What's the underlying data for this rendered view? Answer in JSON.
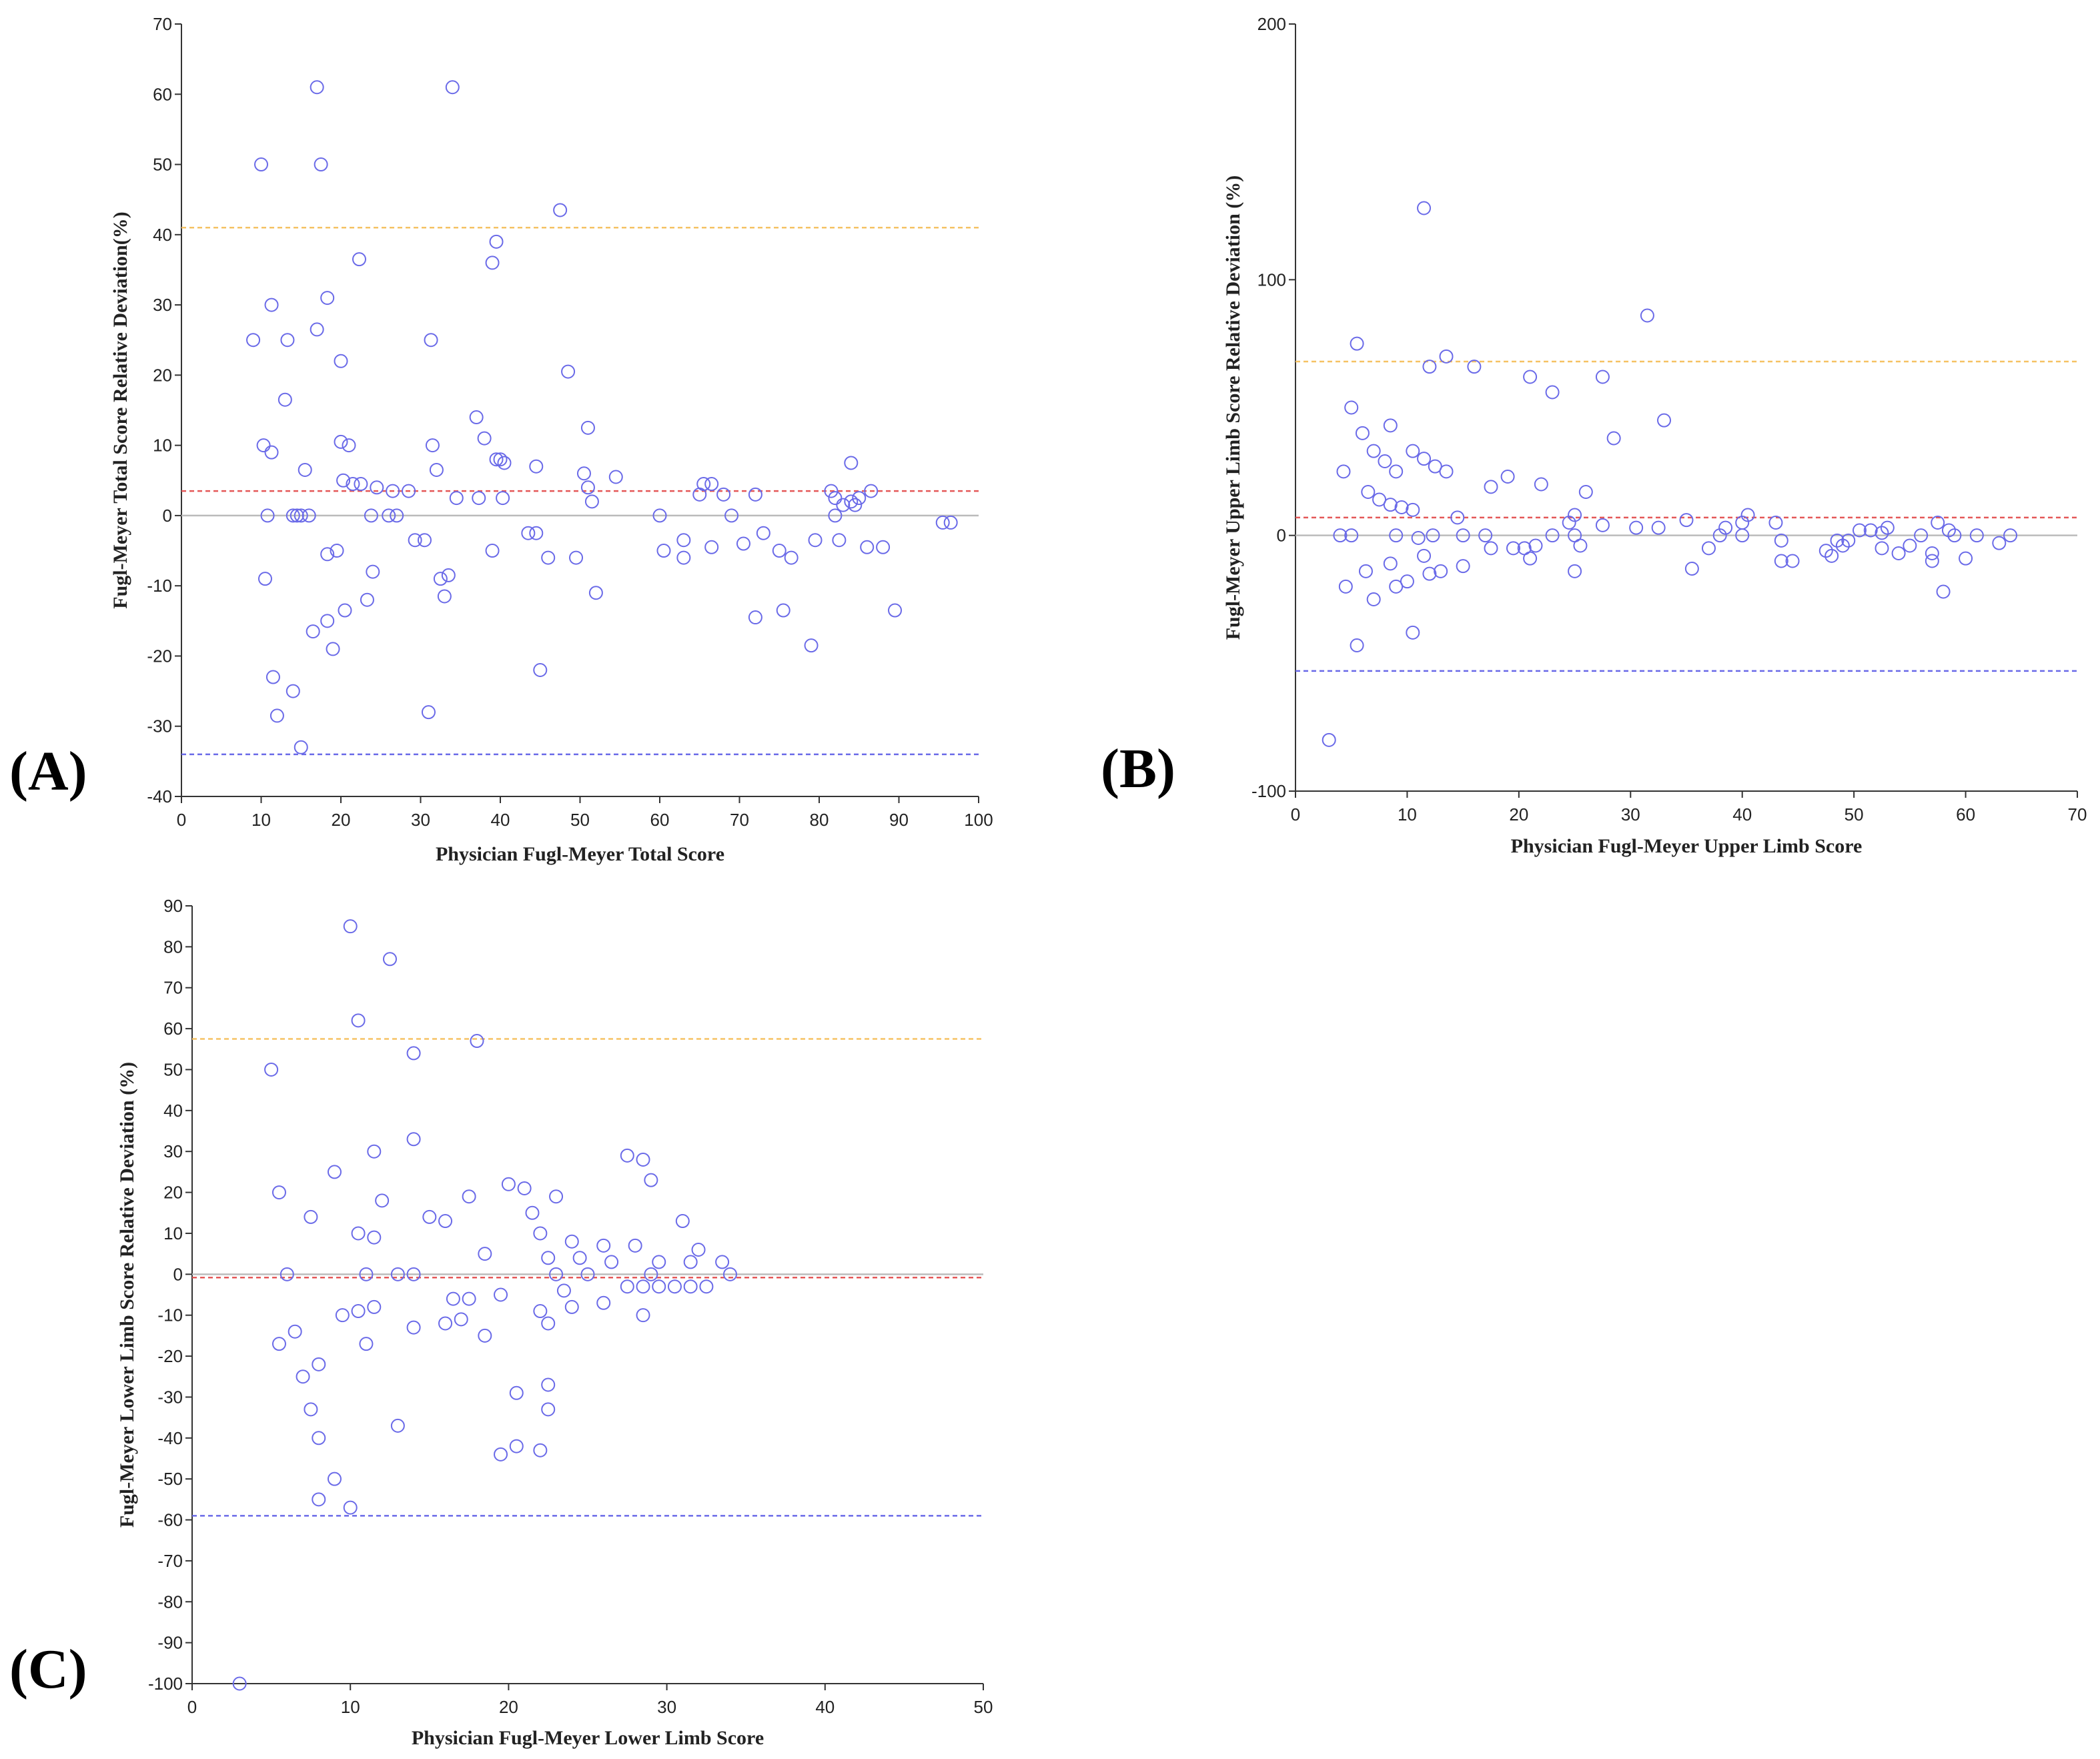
{
  "chart_data": [
    {
      "type": "scatter",
      "panel_label": "(A)",
      "xlabel": "Physician Fugl-Meyer Total Score",
      "ylabel": "Fugl-Meyer Total Score Relative Deviation(%)",
      "xlim": [
        0,
        100
      ],
      "ylim": [
        -40,
        70
      ],
      "xticks": [
        0,
        10,
        20,
        30,
        40,
        50,
        60,
        70,
        80,
        90,
        100
      ],
      "yticks": [
        -40,
        -30,
        -20,
        -10,
        0,
        10,
        20,
        30,
        40,
        50,
        60,
        70
      ],
      "reference_lines": [
        {
          "y": 0,
          "color": "#bbbbbb",
          "style": "solid"
        },
        {
          "y": 41,
          "color": "#f5c264",
          "style": "dashed"
        },
        {
          "y": 3.5,
          "color": "#e45858",
          "style": "dashed"
        },
        {
          "y": -34,
          "color": "#6a6ae8",
          "style": "dashed"
        }
      ],
      "marker_color": "#6a6ae8",
      "points": [
        [
          9,
          25
        ],
        [
          10,
          50
        ],
        [
          10.3,
          10
        ],
        [
          10.5,
          -9
        ],
        [
          10.8,
          0
        ],
        [
          11.3,
          30
        ],
        [
          11.3,
          9
        ],
        [
          11.5,
          -23
        ],
        [
          12,
          -28.5
        ],
        [
          13,
          16.5
        ],
        [
          13.3,
          25
        ],
        [
          14,
          0
        ],
        [
          14,
          -25
        ],
        [
          14.5,
          0
        ],
        [
          15,
          0
        ],
        [
          15,
          -33
        ],
        [
          15.5,
          6.5
        ],
        [
          16,
          0
        ],
        [
          16.5,
          -16.5
        ],
        [
          17,
          61
        ],
        [
          17,
          26.5
        ],
        [
          17.5,
          50
        ],
        [
          18.3,
          31
        ],
        [
          18.3,
          -15
        ],
        [
          18.3,
          -5.5
        ],
        [
          19,
          -19
        ],
        [
          19.5,
          -5
        ],
        [
          20,
          10.5
        ],
        [
          20,
          22
        ],
        [
          20.3,
          5
        ],
        [
          20.5,
          -13.5
        ],
        [
          21,
          10
        ],
        [
          21.5,
          4.5
        ],
        [
          22.3,
          36.5
        ],
        [
          22.5,
          4.5
        ],
        [
          23.3,
          -12
        ],
        [
          23.8,
          0
        ],
        [
          24,
          -8
        ],
        [
          24.5,
          4
        ],
        [
          26,
          0
        ],
        [
          26.5,
          3.5
        ],
        [
          27,
          0
        ],
        [
          28.5,
          3.5
        ],
        [
          29.3,
          -3.5
        ],
        [
          30.5,
          -3.5
        ],
        [
          31,
          -28
        ],
        [
          31.3,
          25
        ],
        [
          31.5,
          10
        ],
        [
          32,
          6.5
        ],
        [
          32.5,
          -9
        ],
        [
          33,
          -11.5
        ],
        [
          33.5,
          -8.5
        ],
        [
          34,
          61
        ],
        [
          34.5,
          2.5
        ],
        [
          37,
          14
        ],
        [
          37.3,
          2.5
        ],
        [
          38,
          11
        ],
        [
          39,
          36
        ],
        [
          39,
          -5
        ],
        [
          39.5,
          8
        ],
        [
          39.5,
          39
        ],
        [
          40,
          8
        ],
        [
          40.3,
          2.5
        ],
        [
          40.5,
          7.5
        ],
        [
          43.5,
          -2.5
        ],
        [
          44.5,
          7
        ],
        [
          44.5,
          -2.5
        ],
        [
          45,
          -22
        ],
        [
          46,
          -6
        ],
        [
          47.5,
          43.5
        ],
        [
          48.5,
          20.5
        ],
        [
          49.5,
          -6
        ],
        [
          50.5,
          6
        ],
        [
          51,
          12.5
        ],
        [
          51,
          4
        ],
        [
          51.5,
          2
        ],
        [
          52,
          -11
        ],
        [
          54.5,
          5.5
        ],
        [
          60,
          0
        ],
        [
          60.5,
          -5
        ],
        [
          63,
          -6
        ],
        [
          63,
          -3.5
        ],
        [
          65,
          3
        ],
        [
          65.5,
          4.5
        ],
        [
          66.5,
          4.5
        ],
        [
          66.5,
          -4.5
        ],
        [
          68,
          3
        ],
        [
          69,
          0
        ],
        [
          70.5,
          -4
        ],
        [
          72,
          3
        ],
        [
          72,
          -14.5
        ],
        [
          73,
          -2.5
        ],
        [
          75,
          -5
        ],
        [
          75.5,
          -13.5
        ],
        [
          76.5,
          -6
        ],
        [
          79,
          -18.5
        ],
        [
          79.5,
          -3.5
        ],
        [
          81.5,
          3.5
        ],
        [
          82,
          0
        ],
        [
          82,
          2.5
        ],
        [
          82.5,
          -3.5
        ],
        [
          83,
          1.5
        ],
        [
          84,
          7.5
        ],
        [
          84,
          2
        ],
        [
          84.5,
          1.5
        ],
        [
          85,
          2.5
        ],
        [
          86,
          -4.5
        ],
        [
          86.5,
          3.5
        ],
        [
          88,
          -4.5
        ],
        [
          89.5,
          -13.5
        ],
        [
          95.5,
          -1
        ],
        [
          96.5,
          -1
        ]
      ]
    },
    {
      "type": "scatter",
      "panel_label": "(B)",
      "xlabel": "Physician Fugl-Meyer Upper Limb Score",
      "ylabel": "Fugl-Meyer Upper Limb Score Relative Deviation (%)",
      "xlim": [
        0,
        70
      ],
      "ylim": [
        -100,
        200
      ],
      "xticks": [
        0,
        10,
        20,
        30,
        40,
        50,
        60,
        70
      ],
      "yticks": [
        -100,
        0,
        100,
        200
      ],
      "reference_lines": [
        {
          "y": 0,
          "color": "#bbbbbb",
          "style": "solid"
        },
        {
          "y": 68,
          "color": "#f5c264",
          "style": "dashed"
        },
        {
          "y": 7,
          "color": "#e45858",
          "style": "dashed"
        },
        {
          "y": -53,
          "color": "#6a6ae8",
          "style": "dashed"
        }
      ],
      "marker_color": "#6a6ae8",
      "points": [
        [
          3,
          -80
        ],
        [
          4,
          0
        ],
        [
          4.3,
          25
        ],
        [
          4.5,
          -20
        ],
        [
          5,
          0
        ],
        [
          5,
          50
        ],
        [
          5.5,
          75
        ],
        [
          5.5,
          -43
        ],
        [
          6,
          40
        ],
        [
          6.3,
          -14
        ],
        [
          6.5,
          17
        ],
        [
          7,
          33
        ],
        [
          7,
          -25
        ],
        [
          7.5,
          14
        ],
        [
          8,
          29
        ],
        [
          8.5,
          12
        ],
        [
          8.5,
          43
        ],
        [
          8.5,
          -11
        ],
        [
          9,
          25
        ],
        [
          9,
          0
        ],
        [
          9,
          -20
        ],
        [
          9.5,
          11
        ],
        [
          10,
          -18
        ],
        [
          10.5,
          33
        ],
        [
          10.5,
          10
        ],
        [
          10.5,
          -38
        ],
        [
          11,
          -1
        ],
        [
          11.5,
          128
        ],
        [
          11.5,
          30
        ],
        [
          11.5,
          -8
        ],
        [
          12,
          66
        ],
        [
          12,
          -15
        ],
        [
          12.3,
          0
        ],
        [
          12.5,
          27
        ],
        [
          13,
          -14
        ],
        [
          13.5,
          70
        ],
        [
          13.5,
          25
        ],
        [
          14.5,
          7
        ],
        [
          15,
          0
        ],
        [
          15,
          -12
        ],
        [
          16,
          66
        ],
        [
          17,
          0
        ],
        [
          17.5,
          19
        ],
        [
          17.5,
          -5
        ],
        [
          19,
          23
        ],
        [
          19.5,
          -5
        ],
        [
          20.5,
          -5
        ],
        [
          21,
          -9
        ],
        [
          21,
          62
        ],
        [
          21.5,
          -4
        ],
        [
          22,
          20
        ],
        [
          23,
          56
        ],
        [
          23,
          0
        ],
        [
          24.5,
          5
        ],
        [
          25,
          -14
        ],
        [
          25,
          8
        ],
        [
          25,
          0
        ],
        [
          25.5,
          -4
        ],
        [
          26,
          17
        ],
        [
          27.5,
          4
        ],
        [
          27.5,
          62
        ],
        [
          28.5,
          38
        ],
        [
          30.5,
          3
        ],
        [
          31.5,
          86
        ],
        [
          32.5,
          3
        ],
        [
          33,
          45
        ],
        [
          35,
          6
        ],
        [
          35.5,
          -13
        ],
        [
          37,
          -5
        ],
        [
          38,
          0
        ],
        [
          38.5,
          3
        ],
        [
          40,
          0
        ],
        [
          40,
          5
        ],
        [
          40.5,
          8
        ],
        [
          43,
          5
        ],
        [
          43.5,
          -2
        ],
        [
          43.5,
          -10
        ],
        [
          44.5,
          -10
        ],
        [
          47.5,
          -6
        ],
        [
          48,
          -8
        ],
        [
          48.5,
          -2
        ],
        [
          49,
          -4
        ],
        [
          49.5,
          -2
        ],
        [
          50.5,
          2
        ],
        [
          51.5,
          2
        ],
        [
          52.5,
          1
        ],
        [
          52.5,
          -5
        ],
        [
          53,
          3
        ],
        [
          54,
          -7
        ],
        [
          55,
          -4
        ],
        [
          56,
          0
        ],
        [
          57,
          -7
        ],
        [
          57,
          -10
        ],
        [
          57.5,
          5
        ],
        [
          58,
          -22
        ],
        [
          58.5,
          2
        ],
        [
          59,
          0
        ],
        [
          60,
          -9
        ],
        [
          61,
          0
        ],
        [
          63,
          -3
        ],
        [
          64,
          0
        ]
      ]
    },
    {
      "type": "scatter",
      "panel_label": "(C)",
      "xlabel": "Physician Fugl-Meyer Lower Limb Score",
      "ylabel": "Fugl-Meyer Lower Limb Score Relative Deviation (%)",
      "xlim": [
        0,
        50
      ],
      "ylim": [
        -100,
        90
      ],
      "xticks": [
        0,
        10,
        20,
        30,
        40,
        50
      ],
      "yticks": [
        -100,
        -90,
        -80,
        -70,
        -60,
        -50,
        -40,
        -30,
        -20,
        -10,
        0,
        10,
        20,
        30,
        40,
        50,
        60,
        70,
        80,
        90
      ],
      "reference_lines": [
        {
          "y": 0,
          "color": "#bbbbbb",
          "style": "solid"
        },
        {
          "y": 57.5,
          "color": "#f5c264",
          "style": "dashed"
        },
        {
          "y": -0.8,
          "color": "#e45858",
          "style": "dashed"
        },
        {
          "y": -59,
          "color": "#6a6ae8",
          "style": "dashed"
        }
      ],
      "marker_color": "#6a6ae8",
      "points": [
        [
          3,
          -100
        ],
        [
          5,
          50
        ],
        [
          5.5,
          20
        ],
        [
          5.5,
          -17
        ],
        [
          6,
          0
        ],
        [
          6.5,
          -14
        ],
        [
          7,
          -25
        ],
        [
          7.5,
          14
        ],
        [
          7.5,
          -33
        ],
        [
          8,
          -22
        ],
        [
          8,
          -40
        ],
        [
          8,
          -55
        ],
        [
          9,
          25
        ],
        [
          9,
          -50
        ],
        [
          9.5,
          -10
        ],
        [
          10,
          85
        ],
        [
          10,
          -57
        ],
        [
          10.5,
          62
        ],
        [
          10.5,
          10
        ],
        [
          10.5,
          -9
        ],
        [
          11,
          -17
        ],
        [
          11,
          0
        ],
        [
          11.5,
          30
        ],
        [
          11.5,
          9
        ],
        [
          11.5,
          -8
        ],
        [
          12,
          18
        ],
        [
          12.5,
          77
        ],
        [
          13,
          0
        ],
        [
          13,
          -37
        ],
        [
          14,
          54
        ],
        [
          14,
          33
        ],
        [
          14,
          0
        ],
        [
          14,
          -13
        ],
        [
          15,
          14
        ],
        [
          16,
          -12
        ],
        [
          16,
          13
        ],
        [
          16.5,
          -6
        ],
        [
          17,
          -11
        ],
        [
          17.5,
          -6
        ],
        [
          17.5,
          19
        ],
        [
          18,
          57
        ],
        [
          18.5,
          5
        ],
        [
          18.5,
          -15
        ],
        [
          19.5,
          -5
        ],
        [
          19.5,
          -44
        ],
        [
          20,
          22
        ],
        [
          20.5,
          -29
        ],
        [
          20.5,
          -42
        ],
        [
          21,
          21
        ],
        [
          21.5,
          15
        ],
        [
          22,
          -9
        ],
        [
          22,
          10
        ],
        [
          22,
          -43
        ],
        [
          22.5,
          4
        ],
        [
          22.5,
          -12
        ],
        [
          22.5,
          -27
        ],
        [
          22.5,
          -33
        ],
        [
          23,
          19
        ],
        [
          23,
          0
        ],
        [
          23.5,
          -4
        ],
        [
          24,
          8
        ],
        [
          24,
          -8
        ],
        [
          24.5,
          4
        ],
        [
          25,
          0
        ],
        [
          26,
          7
        ],
        [
          26,
          -7
        ],
        [
          26.5,
          3
        ],
        [
          27.5,
          29
        ],
        [
          27.5,
          -3
        ],
        [
          28,
          7
        ],
        [
          28.5,
          28
        ],
        [
          28.5,
          -10
        ],
        [
          28.5,
          -3
        ],
        [
          29,
          0
        ],
        [
          29,
          23
        ],
        [
          29.5,
          3
        ],
        [
          29.5,
          -3
        ],
        [
          30.5,
          -3
        ],
        [
          31,
          13
        ],
        [
          31.5,
          3
        ],
        [
          31.5,
          -3
        ],
        [
          32,
          6
        ],
        [
          32.5,
          -3
        ],
        [
          33.5,
          3
        ],
        [
          34,
          0
        ]
      ]
    }
  ]
}
